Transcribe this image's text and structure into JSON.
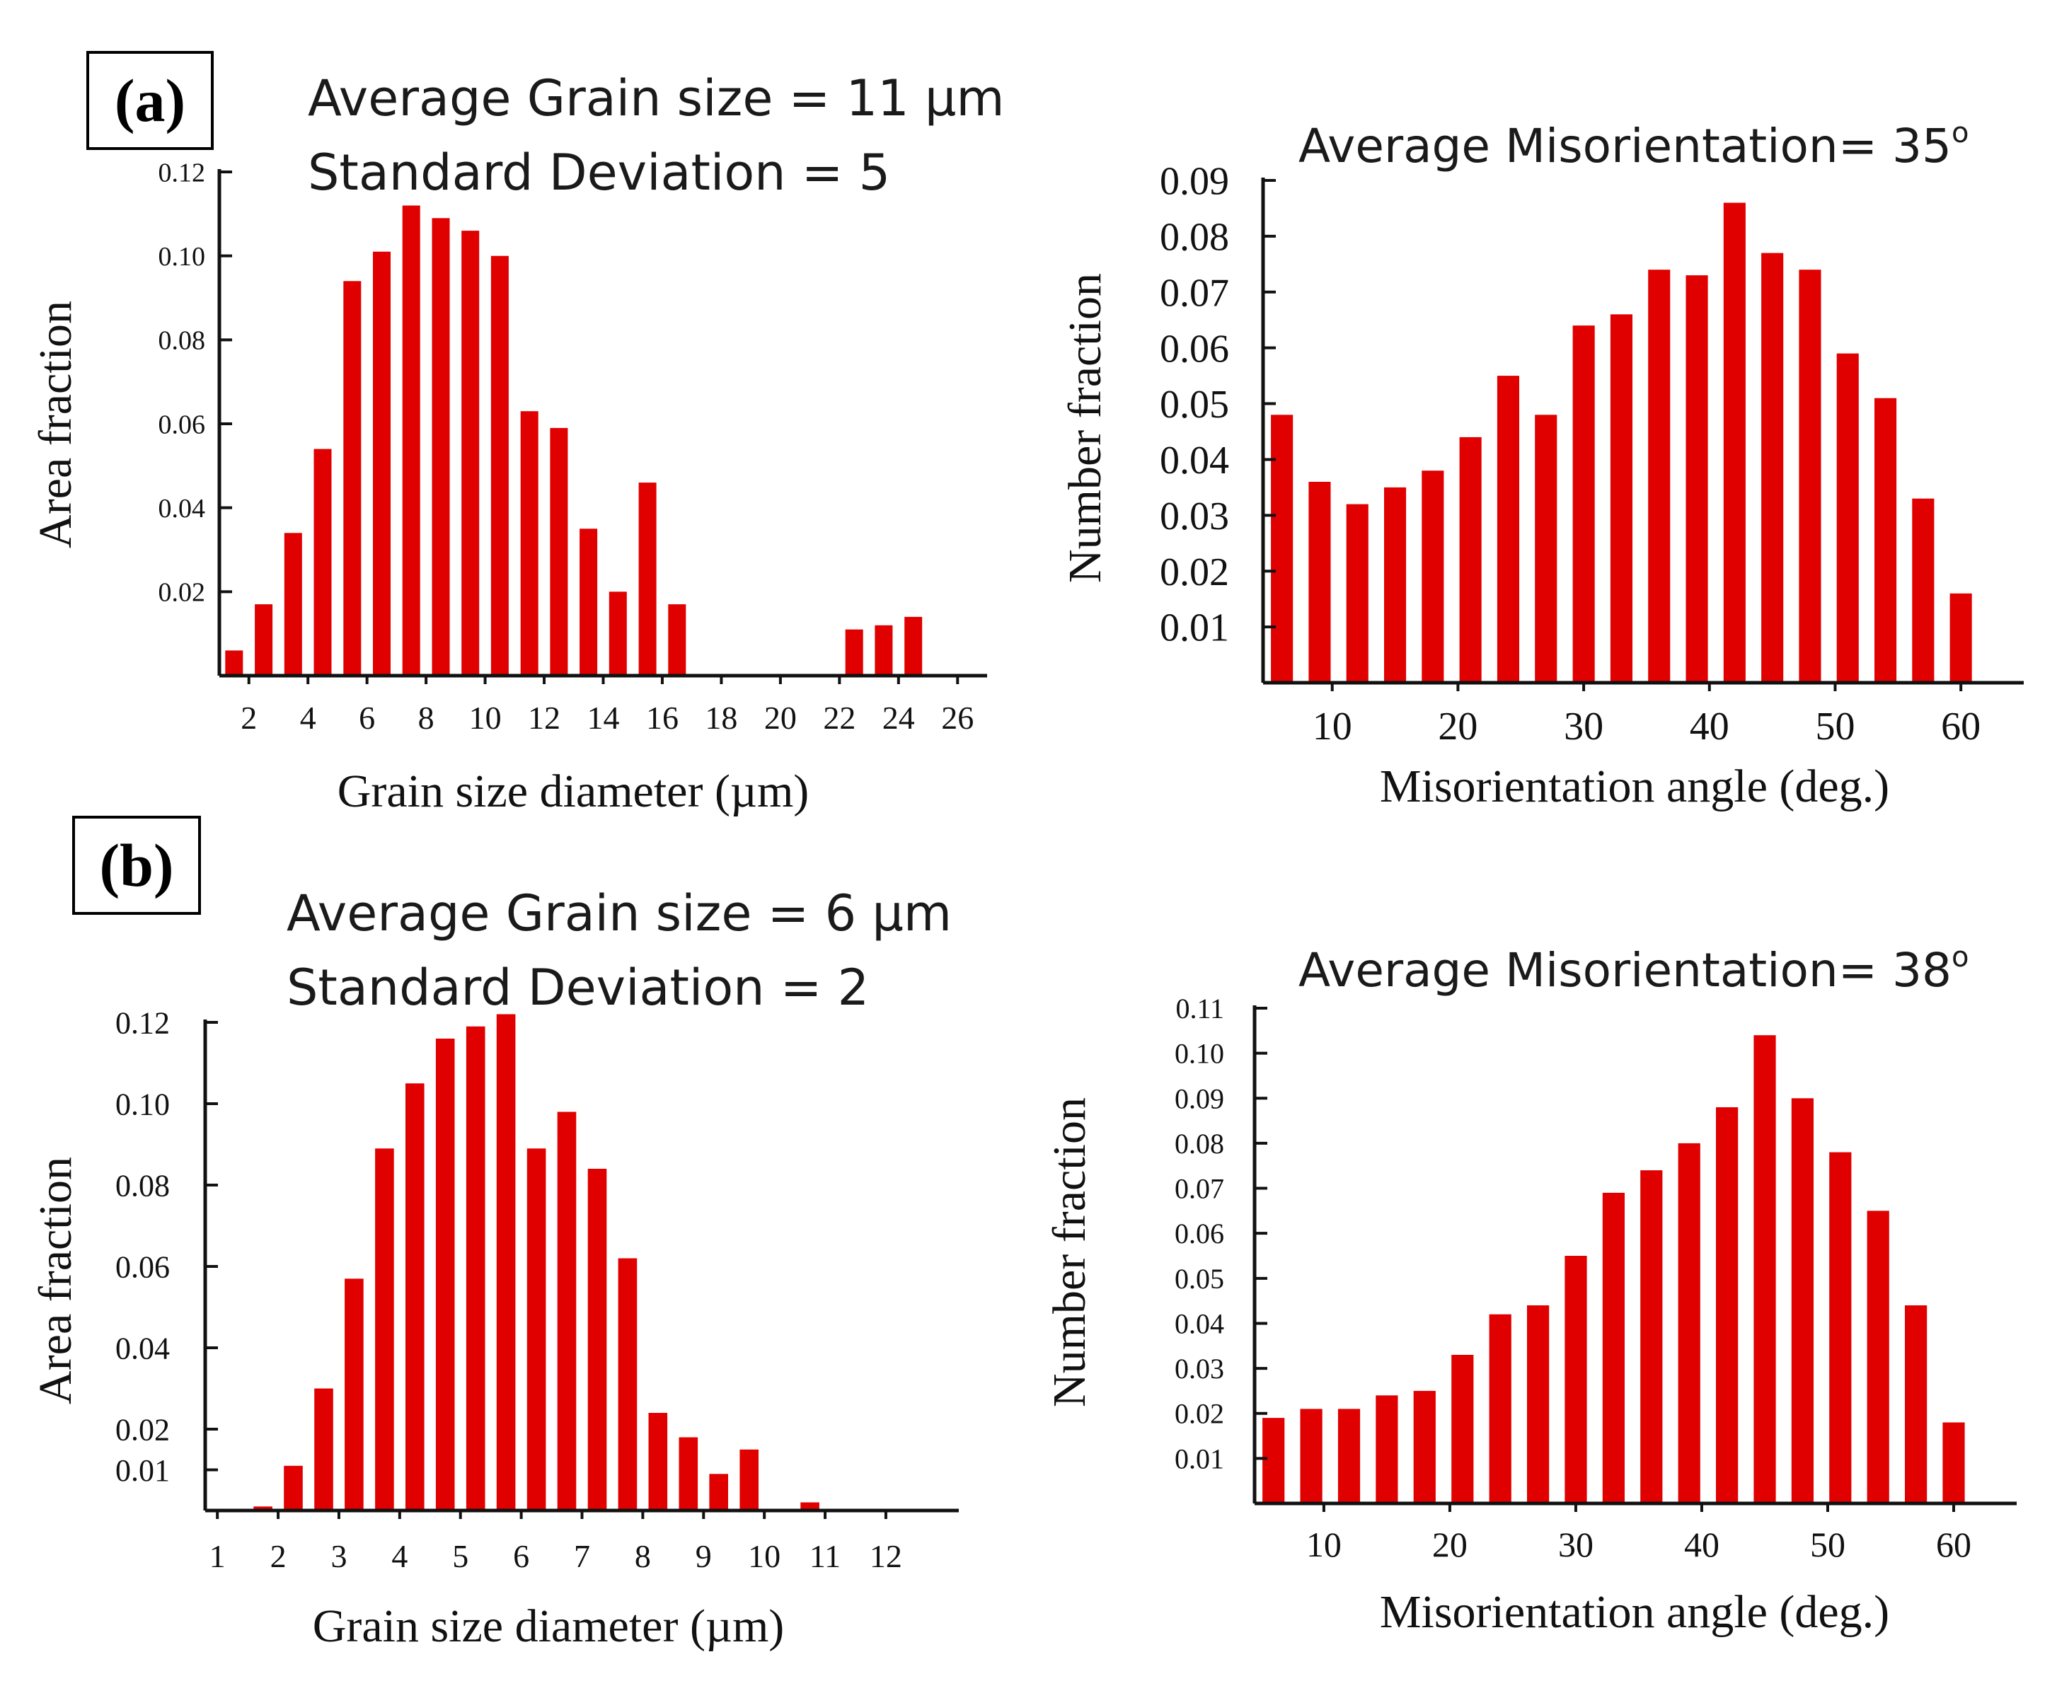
{
  "panels": {
    "a": {
      "label": "(a)",
      "avg_line": "Average Grain size = 11 µm",
      "sd_line": "Standard Deviation = 5",
      "mis_title": "Average Misorientation= 35",
      "mis_title_sup": "o"
    },
    "b": {
      "label": "(b)",
      "avg_line": "Average Grain size = 6 µm",
      "sd_line": "Standard Deviation = 2",
      "mis_title": "Average Misorientation= 38",
      "mis_title_sup": "o"
    }
  },
  "colors": {
    "bar": "#e00000",
    "axis": "#111111"
  },
  "chart_data": [
    {
      "id": "a-grain",
      "type": "bar",
      "xlabel": "Grain size diameter (µm)",
      "ylabel": "Area fraction",
      "xlim": [
        1,
        27
      ],
      "ylim": [
        0,
        0.12
      ],
      "xticks": [
        "2",
        "4",
        "6",
        "8",
        "10",
        "12",
        "14",
        "16",
        "18",
        "20",
        "22",
        "24",
        "26"
      ],
      "xtick_values": [
        2,
        4,
        6,
        8,
        10,
        12,
        14,
        16,
        18,
        20,
        22,
        24,
        26
      ],
      "yticks": [
        "0.02",
        "0.04",
        "0.06",
        "0.08",
        "0.10",
        "0.12"
      ],
      "ytick_values": [
        0.02,
        0.04,
        0.06,
        0.08,
        0.1,
        0.12
      ],
      "x": [
        1.5,
        2.5,
        3.5,
        4.5,
        5.5,
        6.5,
        7.5,
        8.5,
        9.5,
        10.5,
        11.5,
        12.5,
        13.5,
        14.5,
        15.5,
        16.5,
        17.5,
        18.5,
        19.5,
        21.5,
        22.5,
        23.5,
        24.5,
        25.5
      ],
      "values": [
        0.006,
        0.017,
        0.034,
        0.054,
        0.094,
        0.101,
        0.112,
        0.109,
        0.106,
        0.1,
        0.063,
        0.059,
        0.035,
        0.02,
        0.046,
        0.017,
        0,
        0,
        0,
        0,
        0.011,
        0.012,
        0.014,
        0
      ],
      "bar_width": 0.6
    },
    {
      "id": "a-mis",
      "type": "bar",
      "xlabel": "Misorientation angle (deg.)",
      "ylabel": "Number fraction",
      "xlim": [
        4.5,
        65
      ],
      "ylim": [
        0,
        0.09
      ],
      "xticks": [
        "10",
        "20",
        "30",
        "40",
        "50",
        "60"
      ],
      "xtick_values": [
        10,
        20,
        30,
        40,
        50,
        60
      ],
      "yticks": [
        "0.01",
        "0.02",
        "0.03",
        "0.04",
        "0.05",
        "0.06",
        "0.07",
        "0.08",
        "0.09"
      ],
      "ytick_values": [
        0.01,
        0.02,
        0.03,
        0.04,
        0.05,
        0.06,
        0.07,
        0.08,
        0.09
      ],
      "x": [
        6,
        9,
        12,
        15,
        18,
        21,
        24,
        27,
        30,
        33,
        36,
        39,
        42,
        45,
        48,
        51,
        54,
        57,
        60
      ],
      "values": [
        0.048,
        0.036,
        0.032,
        0.035,
        0.038,
        0.044,
        0.055,
        0.048,
        0.064,
        0.066,
        0.074,
        0.073,
        0.086,
        0.077,
        0.074,
        0.059,
        0.051,
        0.033,
        0.016
      ],
      "bar_width": 1.75
    },
    {
      "id": "b-grain",
      "type": "bar",
      "xlabel": "Grain size diameter (µm)",
      "ylabel": "Area fraction",
      "xlim": [
        0.8,
        13.2
      ],
      "ylim": [
        0,
        0.12
      ],
      "xticks": [
        "1",
        "2",
        "3",
        "4",
        "5",
        "6",
        "7",
        "8",
        "9",
        "10",
        "11",
        "12"
      ],
      "xtick_values": [
        1,
        2,
        3,
        4,
        5,
        6,
        7,
        8,
        9,
        10,
        11,
        12
      ],
      "yticks": [
        "0.01",
        "0.02",
        "0.04",
        "0.06",
        "0.08",
        "0.10",
        "0.12"
      ],
      "ytick_values": [
        0.01,
        0.02,
        0.04,
        0.06,
        0.08,
        0.1,
        0.12
      ],
      "x": [
        1.75,
        2.25,
        2.75,
        3.25,
        3.75,
        4.25,
        4.75,
        5.25,
        5.75,
        6.25,
        6.75,
        7.25,
        7.75,
        8.25,
        8.75,
        9.25,
        9.75,
        10.25,
        10.75,
        11.25,
        11.75,
        12.25
      ],
      "values": [
        0.001,
        0.011,
        0.03,
        0.057,
        0.089,
        0.105,
        0.116,
        0.119,
        0.122,
        0.089,
        0.098,
        0.084,
        0.062,
        0.024,
        0.018,
        0.009,
        0.015,
        0,
        0.002,
        0,
        0,
        0
      ],
      "bar_width": 0.31
    },
    {
      "id": "b-mis",
      "type": "bar",
      "xlabel": "Misorientation angle (deg.)",
      "ylabel": "Number fraction",
      "xlim": [
        4.5,
        65
      ],
      "ylim": [
        0,
        0.11
      ],
      "xticks": [
        "10",
        "20",
        "30",
        "40",
        "50",
        "60"
      ],
      "xtick_values": [
        10,
        20,
        30,
        40,
        50,
        60
      ],
      "yticks": [
        "0.01",
        "0.02",
        "0.03",
        "0.04",
        "0.05",
        "0.06",
        "0.07",
        "0.08",
        "0.09",
        "0.10",
        "0.11"
      ],
      "ytick_values": [
        0.01,
        0.02,
        0.03,
        0.04,
        0.05,
        0.06,
        0.07,
        0.08,
        0.09,
        0.1,
        0.11
      ],
      "x": [
        6,
        9,
        12,
        15,
        18,
        21,
        24,
        27,
        30,
        33,
        36,
        39,
        42,
        45,
        48,
        51,
        54,
        57,
        60
      ],
      "values": [
        0.019,
        0.021,
        0.021,
        0.024,
        0.025,
        0.033,
        0.042,
        0.044,
        0.055,
        0.069,
        0.074,
        0.08,
        0.088,
        0.104,
        0.09,
        0.078,
        0.065,
        0.044,
        0.018
      ],
      "bar_width": 1.75
    }
  ]
}
